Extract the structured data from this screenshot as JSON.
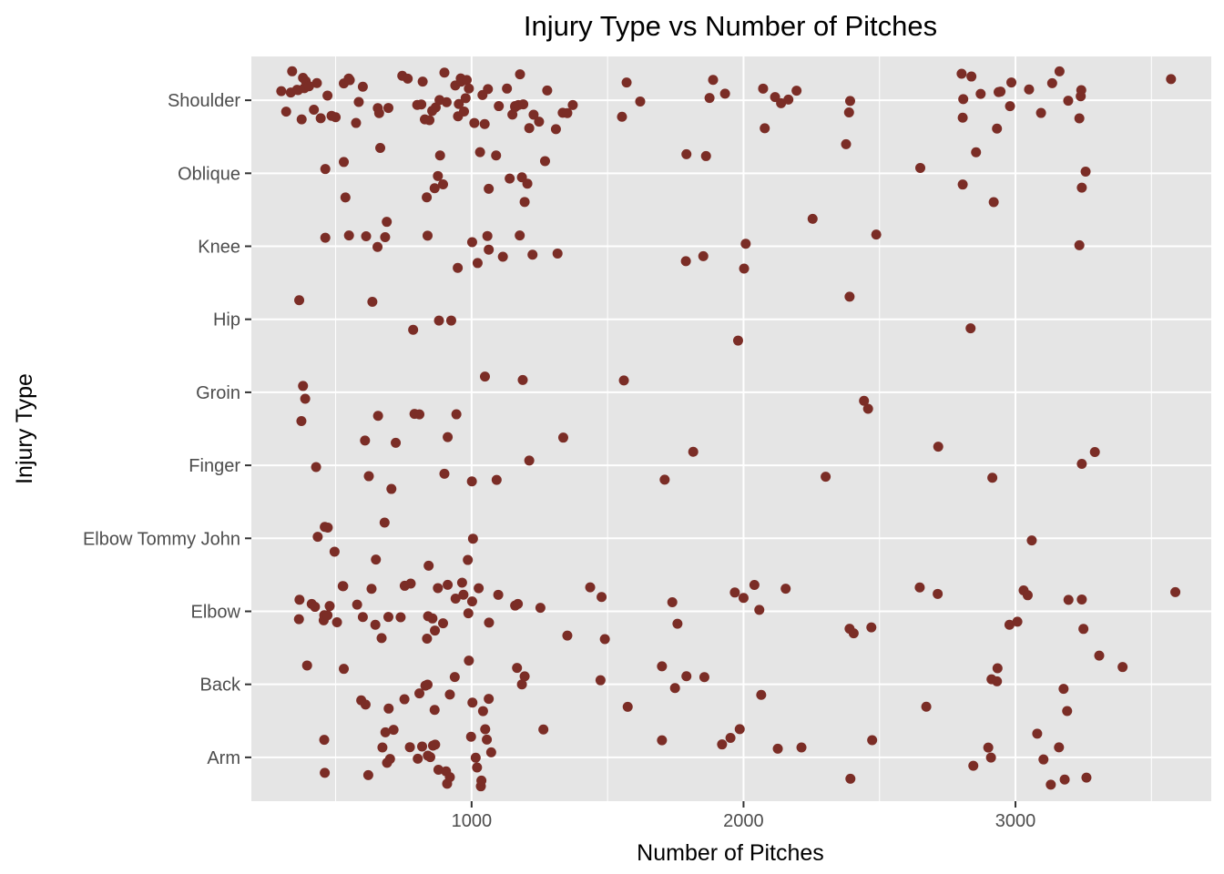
{
  "chart_data": {
    "type": "scatter",
    "title": "Injury Type vs Number of Pitches",
    "xlabel": "Number of Pitches",
    "ylabel": "Injury Type",
    "xlim": [
      190,
      3720
    ],
    "x_ticks": [
      1000,
      2000,
      3000
    ],
    "categories": [
      "Arm",
      "Back",
      "Elbow",
      "Elbow Tommy John",
      "Finger",
      "Groin",
      "Hip",
      "Knee",
      "Oblique",
      "Shoulder"
    ],
    "grid": true,
    "legend": "none",
    "point_color": "#7b2d26",
    "panel_color": "#e5e5e5",
    "points": [
      {
        "y": "Shoulder",
        "x": [
          300,
          318,
          335,
          340,
          358,
          362,
          375,
          380,
          385,
          390,
          402,
          420,
          431,
          445,
          470,
          485,
          500,
          530,
          548,
          552,
          575,
          585,
          600,
          655,
          660,
          694,
          745,
          765,
          800,
          815,
          820,
          828,
          845,
          855,
          868,
          882,
          900,
          908,
          940,
          950,
          953,
          960,
          962,
          972,
          978,
          982,
          990,
          1010,
          1040,
          1048,
          1060,
          1100,
          1130,
          1150,
          1160,
          1160,
          1172,
          1178,
          1190,
          1212,
          1228,
          1248,
          1278,
          1310,
          1335,
          1352,
          1372,
          1553,
          1570,
          1620,
          1875,
          1888,
          1932,
          2072,
          2078,
          2116,
          2138,
          2165,
          2195,
          2388,
          2392,
          2802,
          2806,
          2808,
          2838,
          2872,
          2932,
          2938,
          2945,
          2980,
          2985,
          3050,
          3094,
          3135,
          3162,
          3194,
          3235,
          3240,
          3242,
          3572
        ]
      },
      {
        "y": "Oblique",
        "x": [
          462,
          530,
          536,
          664,
          835,
          864,
          876,
          884,
          895,
          1031,
          1063,
          1090,
          1140,
          1185,
          1195,
          1205,
          1270,
          1790,
          1862,
          2377,
          2650,
          2855,
          2806,
          2920,
          3244,
          3258
        ]
      },
      {
        "y": "Knee",
        "x": [
          462,
          549,
          612,
          654,
          682,
          688,
          838,
          949,
          1002,
          1022,
          1058,
          1063,
          1115,
          1177,
          1224,
          1316,
          1788,
          1852,
          2002,
          2008,
          2254,
          2488,
          3235
        ]
      },
      {
        "y": "Hip",
        "x": [
          366,
          635,
          785,
          880,
          925,
          1980,
          2390,
          2835
        ]
      },
      {
        "y": "Groin",
        "x": [
          374,
          380,
          388,
          656,
          790,
          808,
          944,
          1049,
          1188,
          1560,
          2443,
          2458
        ]
      },
      {
        "y": "Finger",
        "x": [
          428,
          608,
          622,
          705,
          721,
          900,
          912,
          1001,
          1092,
          1212,
          1337,
          1710,
          1815,
          2302,
          2716,
          2915,
          3244,
          3292
        ]
      },
      {
        "y": "Elbow Tommy John",
        "x": [
          434,
          460,
          471,
          496,
          648,
          680,
          842,
          986,
          1005,
          3060
        ]
      },
      {
        "y": "Elbow",
        "x": [
          365,
          367,
          412,
          424,
          456,
          458,
          470,
          478,
          505,
          526,
          528,
          579,
          600,
          632,
          646,
          669,
          694,
          739,
          754,
          776,
          836,
          840,
          856,
          865,
          876,
          895,
          912,
          941,
          965,
          970,
          988,
          1002,
          1026,
          1064,
          1098,
          1160,
          1170,
          1253,
          1352,
          1436,
          1478,
          1490,
          1738,
          1757,
          1968,
          2000,
          2040,
          2058,
          2155,
          2390,
          2405,
          2470,
          2648,
          2714,
          2978,
          3007,
          3030,
          3045,
          3195,
          3244,
          3250,
          3588
        ]
      },
      {
        "y": "Back",
        "x": [
          395,
          530,
          594,
          610,
          695,
          753,
          808,
          830,
          838,
          864,
          920,
          938,
          990,
          1003,
          1042,
          1063,
          1167,
          1185,
          1195,
          1474,
          1574,
          1700,
          1748,
          1790,
          1856,
          2065,
          2672,
          2912,
          2932,
          2934,
          3177,
          3190,
          3308,
          3394
        ]
      },
      {
        "y": "Arm",
        "x": [
          458,
          460,
          620,
          672,
          683,
          689,
          700,
          713,
          773,
          802,
          818,
          839,
          848,
          858,
          866,
          878,
          906,
          910,
          920,
          998,
          1015,
          1020,
          1034,
          1036,
          1050,
          1056,
          1072,
          1264,
          1700,
          1921,
          1952,
          1986,
          2126,
          2213,
          2393,
          2473,
          2845,
          2900,
          2910,
          3080,
          3103,
          3130,
          3160,
          3181,
          3261
        ]
      }
    ]
  }
}
